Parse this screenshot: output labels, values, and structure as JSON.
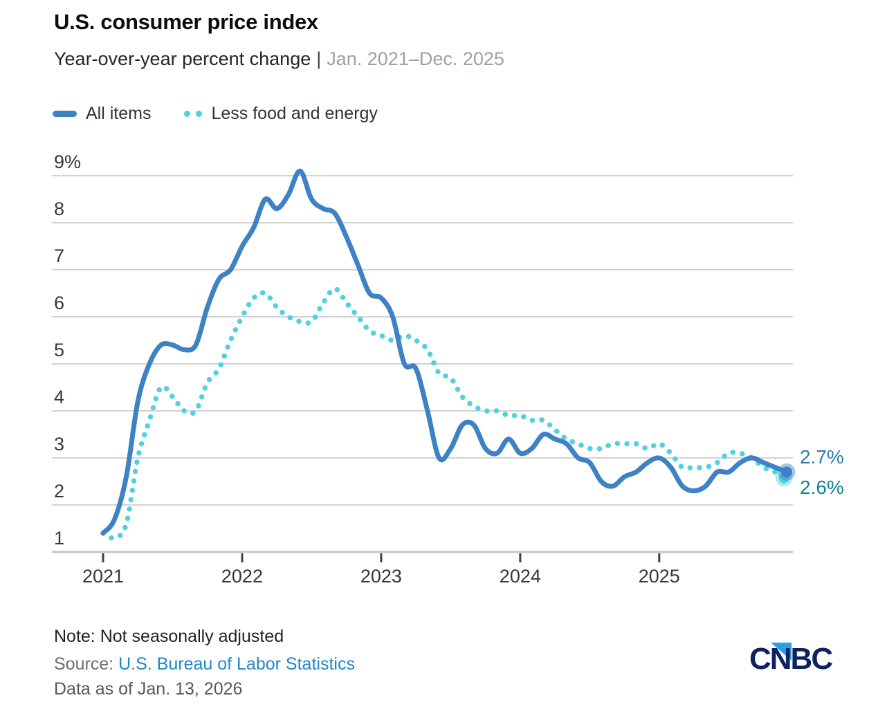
{
  "header": {
    "title": "U.S. consumer price index",
    "subtitle_main": "Year-over-year percent change",
    "subtitle_sep": "|",
    "subtitle_range": "Jan. 2021–Dec. 2025"
  },
  "legend": [
    {
      "label": "All items",
      "color": "#3d82c4",
      "style": "solid"
    },
    {
      "label": "Less food and energy",
      "color": "#4fd2de",
      "style": "dotted"
    }
  ],
  "colors": {
    "gridline": "#d2d2d2",
    "axis_line": "#c6c6c6",
    "tick": "#3a4045",
    "cnbc_navy": "#0e2161",
    "cnbc_blue": "#2aa0e8"
  },
  "footer": {
    "note": "Note: Not seasonally adjusted",
    "source_label": "Source: ",
    "source_link": "U.S. Bureau of Labor Statistics",
    "data_as_of": "Data as of Jan. 13, 2026",
    "logo": "CNBC"
  },
  "chart_data": {
    "type": "line",
    "title": "U.S. consumer price index",
    "subtitle": "Year-over-year percent change | Jan. 2021–Dec. 2025",
    "frequency": "monthly",
    "x_start": "Jan 2021",
    "x_end": "Dec 2025",
    "x_tick_labels": [
      "2021",
      "2022",
      "2023",
      "2024",
      "2025"
    ],
    "y_tick_labels": [
      "9%",
      "8",
      "7",
      "6",
      "5",
      "4",
      "3",
      "2",
      "1"
    ],
    "ylim": [
      1,
      9
    ],
    "grid": true,
    "legend_position": "top",
    "series": [
      {
        "name": "All items",
        "color": "#3d82c4",
        "style": "solid",
        "end_label": "2.7%",
        "end_label_color": "#2e7ab3",
        "values": [
          1.4,
          1.7,
          2.6,
          4.2,
          5.0,
          5.4,
          5.4,
          5.3,
          5.4,
          6.2,
          6.8,
          7.0,
          7.5,
          7.9,
          8.5,
          8.3,
          8.6,
          9.1,
          8.5,
          8.3,
          8.2,
          7.7,
          7.1,
          6.5,
          6.4,
          6.0,
          5.0,
          4.9,
          4.0,
          3.0,
          3.2,
          3.7,
          3.7,
          3.2,
          3.1,
          3.4,
          3.1,
          3.2,
          3.5,
          3.4,
          3.3,
          3.0,
          2.9,
          2.5,
          2.4,
          2.6,
          2.7,
          2.9,
          3.0,
          2.8,
          2.4,
          2.3,
          2.4,
          2.7,
          2.7,
          2.9,
          3.0,
          2.9,
          2.8,
          2.7
        ]
      },
      {
        "name": "Less food and energy",
        "color": "#4fd2de",
        "style": "dotted",
        "end_label": "2.6%",
        "end_label_color": "#0f8294",
        "values": [
          1.4,
          1.3,
          1.6,
          3.0,
          3.8,
          4.5,
          4.3,
          4.0,
          4.0,
          4.6,
          4.9,
          5.5,
          6.0,
          6.4,
          6.5,
          6.2,
          6.0,
          5.9,
          5.9,
          6.3,
          6.6,
          6.3,
          6.0,
          5.7,
          5.6,
          5.5,
          5.6,
          5.5,
          5.3,
          4.8,
          4.7,
          4.3,
          4.1,
          4.0,
          4.0,
          3.9,
          3.9,
          3.8,
          3.8,
          3.6,
          3.4,
          3.3,
          3.2,
          3.2,
          3.3,
          3.3,
          3.3,
          3.2,
          3.3,
          3.1,
          2.8,
          2.8,
          2.8,
          2.9,
          3.1,
          3.1,
          3.0,
          2.8,
          2.7,
          2.6
        ]
      }
    ]
  }
}
